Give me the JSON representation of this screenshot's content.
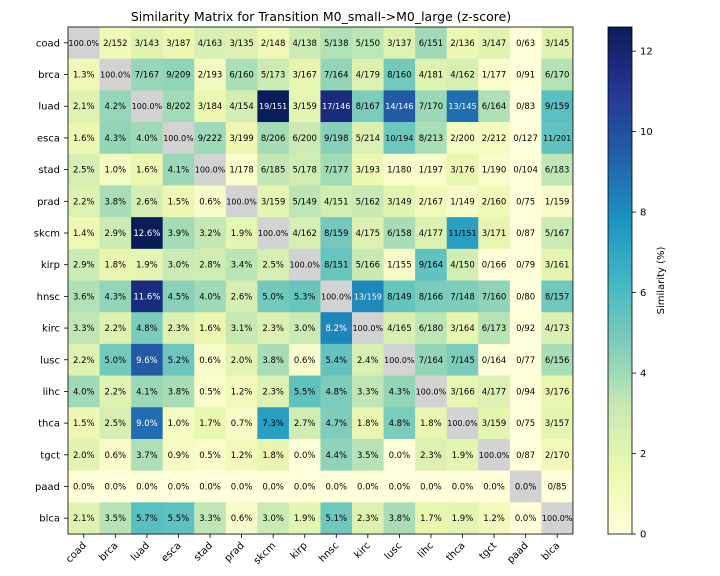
{
  "chart_data": {
    "type": "heatmap",
    "title": "Similarity Matrix for Transition M0_small->M0_large (z-score)",
    "rows": [
      "coad",
      "brca",
      "luad",
      "esca",
      "stad",
      "prad",
      "skcm",
      "kirp",
      "hnsc",
      "kirc",
      "lusc",
      "lihc",
      "thca",
      "tgct",
      "paad",
      "blca"
    ],
    "cols": [
      "coad",
      "brca",
      "luad",
      "esca",
      "stad",
      "prad",
      "skcm",
      "kirp",
      "hnsc",
      "kirc",
      "lusc",
      "lihc",
      "thca",
      "tgct",
      "paad",
      "blca"
    ],
    "labels": [
      [
        "100.0%",
        "2/152",
        "3/143",
        "3/187",
        "4/163",
        "3/135",
        "2/148",
        "4/138",
        "5/138",
        "5/150",
        "3/137",
        "6/151",
        "2/136",
        "3/147",
        "0/63",
        "3/145"
      ],
      [
        "1.3%",
        "100.0%",
        "7/167",
        "9/209",
        "2/193",
        "6/160",
        "5/173",
        "3/167",
        "7/164",
        "4/179",
        "8/160",
        "4/181",
        "4/162",
        "1/177",
        "0/91",
        "6/170"
      ],
      [
        "2.1%",
        "4.2%",
        "100.0%",
        "8/202",
        "3/184",
        "4/154",
        "19/151",
        "3/159",
        "17/146",
        "8/167",
        "14/146",
        "7/170",
        "13/145",
        "6/164",
        "0/83",
        "9/159"
      ],
      [
        "1.6%",
        "4.3%",
        "4.0%",
        "100.0%",
        "9/222",
        "3/199",
        "8/206",
        "6/200",
        "9/198",
        "5/214",
        "10/194",
        "8/213",
        "2/200",
        "2/212",
        "0/127",
        "11/201"
      ],
      [
        "2.5%",
        "1.0%",
        "1.6%",
        "4.1%",
        "100.0%",
        "1/178",
        "6/185",
        "5/178",
        "7/177",
        "3/193",
        "1/180",
        "1/197",
        "3/176",
        "1/190",
        "0/104",
        "6/183"
      ],
      [
        "2.2%",
        "3.8%",
        "2.6%",
        "1.5%",
        "0.6%",
        "100.0%",
        "3/159",
        "5/149",
        "4/151",
        "5/162",
        "3/149",
        "2/167",
        "1/149",
        "2/160",
        "0/75",
        "1/159"
      ],
      [
        "1.4%",
        "2.9%",
        "12.6%",
        "3.9%",
        "3.2%",
        "1.9%",
        "100.0%",
        "4/162",
        "8/159",
        "4/175",
        "6/158",
        "4/177",
        "11/151",
        "3/171",
        "0/87",
        "5/167"
      ],
      [
        "2.9%",
        "1.8%",
        "1.9%",
        "3.0%",
        "2.8%",
        "3.4%",
        "2.5%",
        "100.0%",
        "8/151",
        "5/166",
        "1/155",
        "9/164",
        "4/150",
        "0/166",
        "0/79",
        "3/161"
      ],
      [
        "3.6%",
        "4.3%",
        "11.6%",
        "4.5%",
        "4.0%",
        "2.6%",
        "5.0%",
        "5.3%",
        "100.0%",
        "13/159",
        "8/149",
        "8/166",
        "7/148",
        "7/160",
        "0/80",
        "8/157"
      ],
      [
        "3.3%",
        "2.2%",
        "4.8%",
        "2.3%",
        "1.6%",
        "3.1%",
        "2.3%",
        "3.0%",
        "8.2%",
        "100.0%",
        "4/165",
        "6/180",
        "3/164",
        "6/173",
        "0/92",
        "4/173"
      ],
      [
        "2.2%",
        "5.0%",
        "9.6%",
        "5.2%",
        "0.6%",
        "2.0%",
        "3.8%",
        "0.6%",
        "5.4%",
        "2.4%",
        "100.0%",
        "7/164",
        "7/145",
        "0/164",
        "0/77",
        "6/156"
      ],
      [
        "4.0%",
        "2.2%",
        "4.1%",
        "3.8%",
        "0.5%",
        "1.2%",
        "2.3%",
        "5.5%",
        "4.8%",
        "3.3%",
        "4.3%",
        "100.0%",
        "3/166",
        "4/177",
        "0/94",
        "3/176"
      ],
      [
        "1.5%",
        "2.5%",
        "9.0%",
        "1.0%",
        "1.7%",
        "0.7%",
        "7.3%",
        "2.7%",
        "4.7%",
        "1.8%",
        "4.8%",
        "1.8%",
        "100.0%",
        "3/159",
        "0/75",
        "3/157"
      ],
      [
        "2.0%",
        "0.6%",
        "3.7%",
        "0.9%",
        "0.5%",
        "1.2%",
        "1.8%",
        "0.0%",
        "4.4%",
        "3.5%",
        "0.0%",
        "2.3%",
        "1.9%",
        "100.0%",
        "0/87",
        "2/170"
      ],
      [
        "0.0%",
        "0.0%",
        "0.0%",
        "0.0%",
        "0.0%",
        "0.0%",
        "0.0%",
        "0.0%",
        "0.0%",
        "0.0%",
        "0.0%",
        "0.0%",
        "0.0%",
        "0.0%",
        "0.0%",
        "0/85"
      ],
      [
        "2.1%",
        "3.5%",
        "5.7%",
        "5.5%",
        "3.3%",
        "0.6%",
        "3.0%",
        "1.9%",
        "5.1%",
        "2.3%",
        "3.8%",
        "1.7%",
        "1.9%",
        "1.2%",
        "0.0%",
        "100.0%"
      ]
    ],
    "colorbar": {
      "label": "Similarity (%)",
      "range": [
        0,
        12.6
      ],
      "ticks": [
        "0",
        "2",
        "4",
        "6",
        "8",
        "10",
        "12"
      ],
      "colormap": "YlGnBu",
      "diagonal_color": "#d3d3d3"
    }
  }
}
